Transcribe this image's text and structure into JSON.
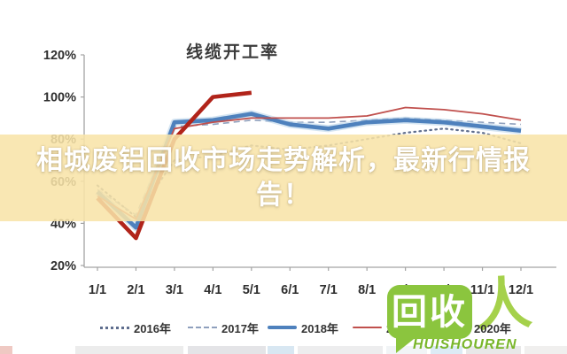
{
  "banner": {
    "line1": "相城废铝回收市场走势解析，最新行情报",
    "line2": "告！"
  },
  "watermark": {
    "bubble_text": "回收",
    "person_glyph": "人",
    "brand": "HUISHOUREN",
    "green": "#8bc53e"
  },
  "chart_data": {
    "type": "line",
    "title": "线缆开工率",
    "categories": [
      "1/1",
      "2/1",
      "3/1",
      "4/1",
      "5/1",
      "6/1",
      "7/1",
      "8/1",
      "9/1",
      "10/1",
      "11/1",
      "12/1"
    ],
    "xlabel": "",
    "ylabel": "",
    "ylim": [
      20,
      120
    ],
    "y_ticks": [
      "120%",
      "100%",
      "80%",
      "60%",
      "40%",
      "20%"
    ],
    "grid": false,
    "legend_position": "bottom",
    "series": [
      {
        "name": "2016年",
        "style": "dotted",
        "color": "#5f6e8e",
        "width": 2.2,
        "values": [
          58,
          43,
          70,
          72,
          77,
          75,
          77,
          80,
          83,
          85,
          83,
          78
        ]
      },
      {
        "name": "2017年",
        "style": "dashed",
        "color": "#8fa0bd",
        "width": 1.6,
        "values": [
          56,
          44,
          86,
          87,
          89,
          88,
          88,
          89,
          90,
          89,
          88,
          87
        ]
      },
      {
        "name": "2018年",
        "style": "solid",
        "color": "#4e81bd",
        "halo": "#b9d3ea",
        "width": 4.6,
        "values": [
          55,
          38,
          88,
          89,
          92,
          87,
          85,
          88,
          89,
          88,
          86,
          84
        ]
      },
      {
        "name": "2019年",
        "style": "solid",
        "color": "#c0504d",
        "width": 1.8,
        "values": [
          53,
          42,
          85,
          88,
          90,
          90,
          90,
          91,
          95,
          94,
          92,
          89
        ]
      },
      {
        "name": "2020年",
        "style": "solid",
        "color": "#b1241a",
        "width": 4.6,
        "arrow": true,
        "values": [
          52,
          33,
          80,
          100,
          102,
          null,
          null,
          null,
          null,
          null,
          null,
          null
        ]
      }
    ]
  }
}
